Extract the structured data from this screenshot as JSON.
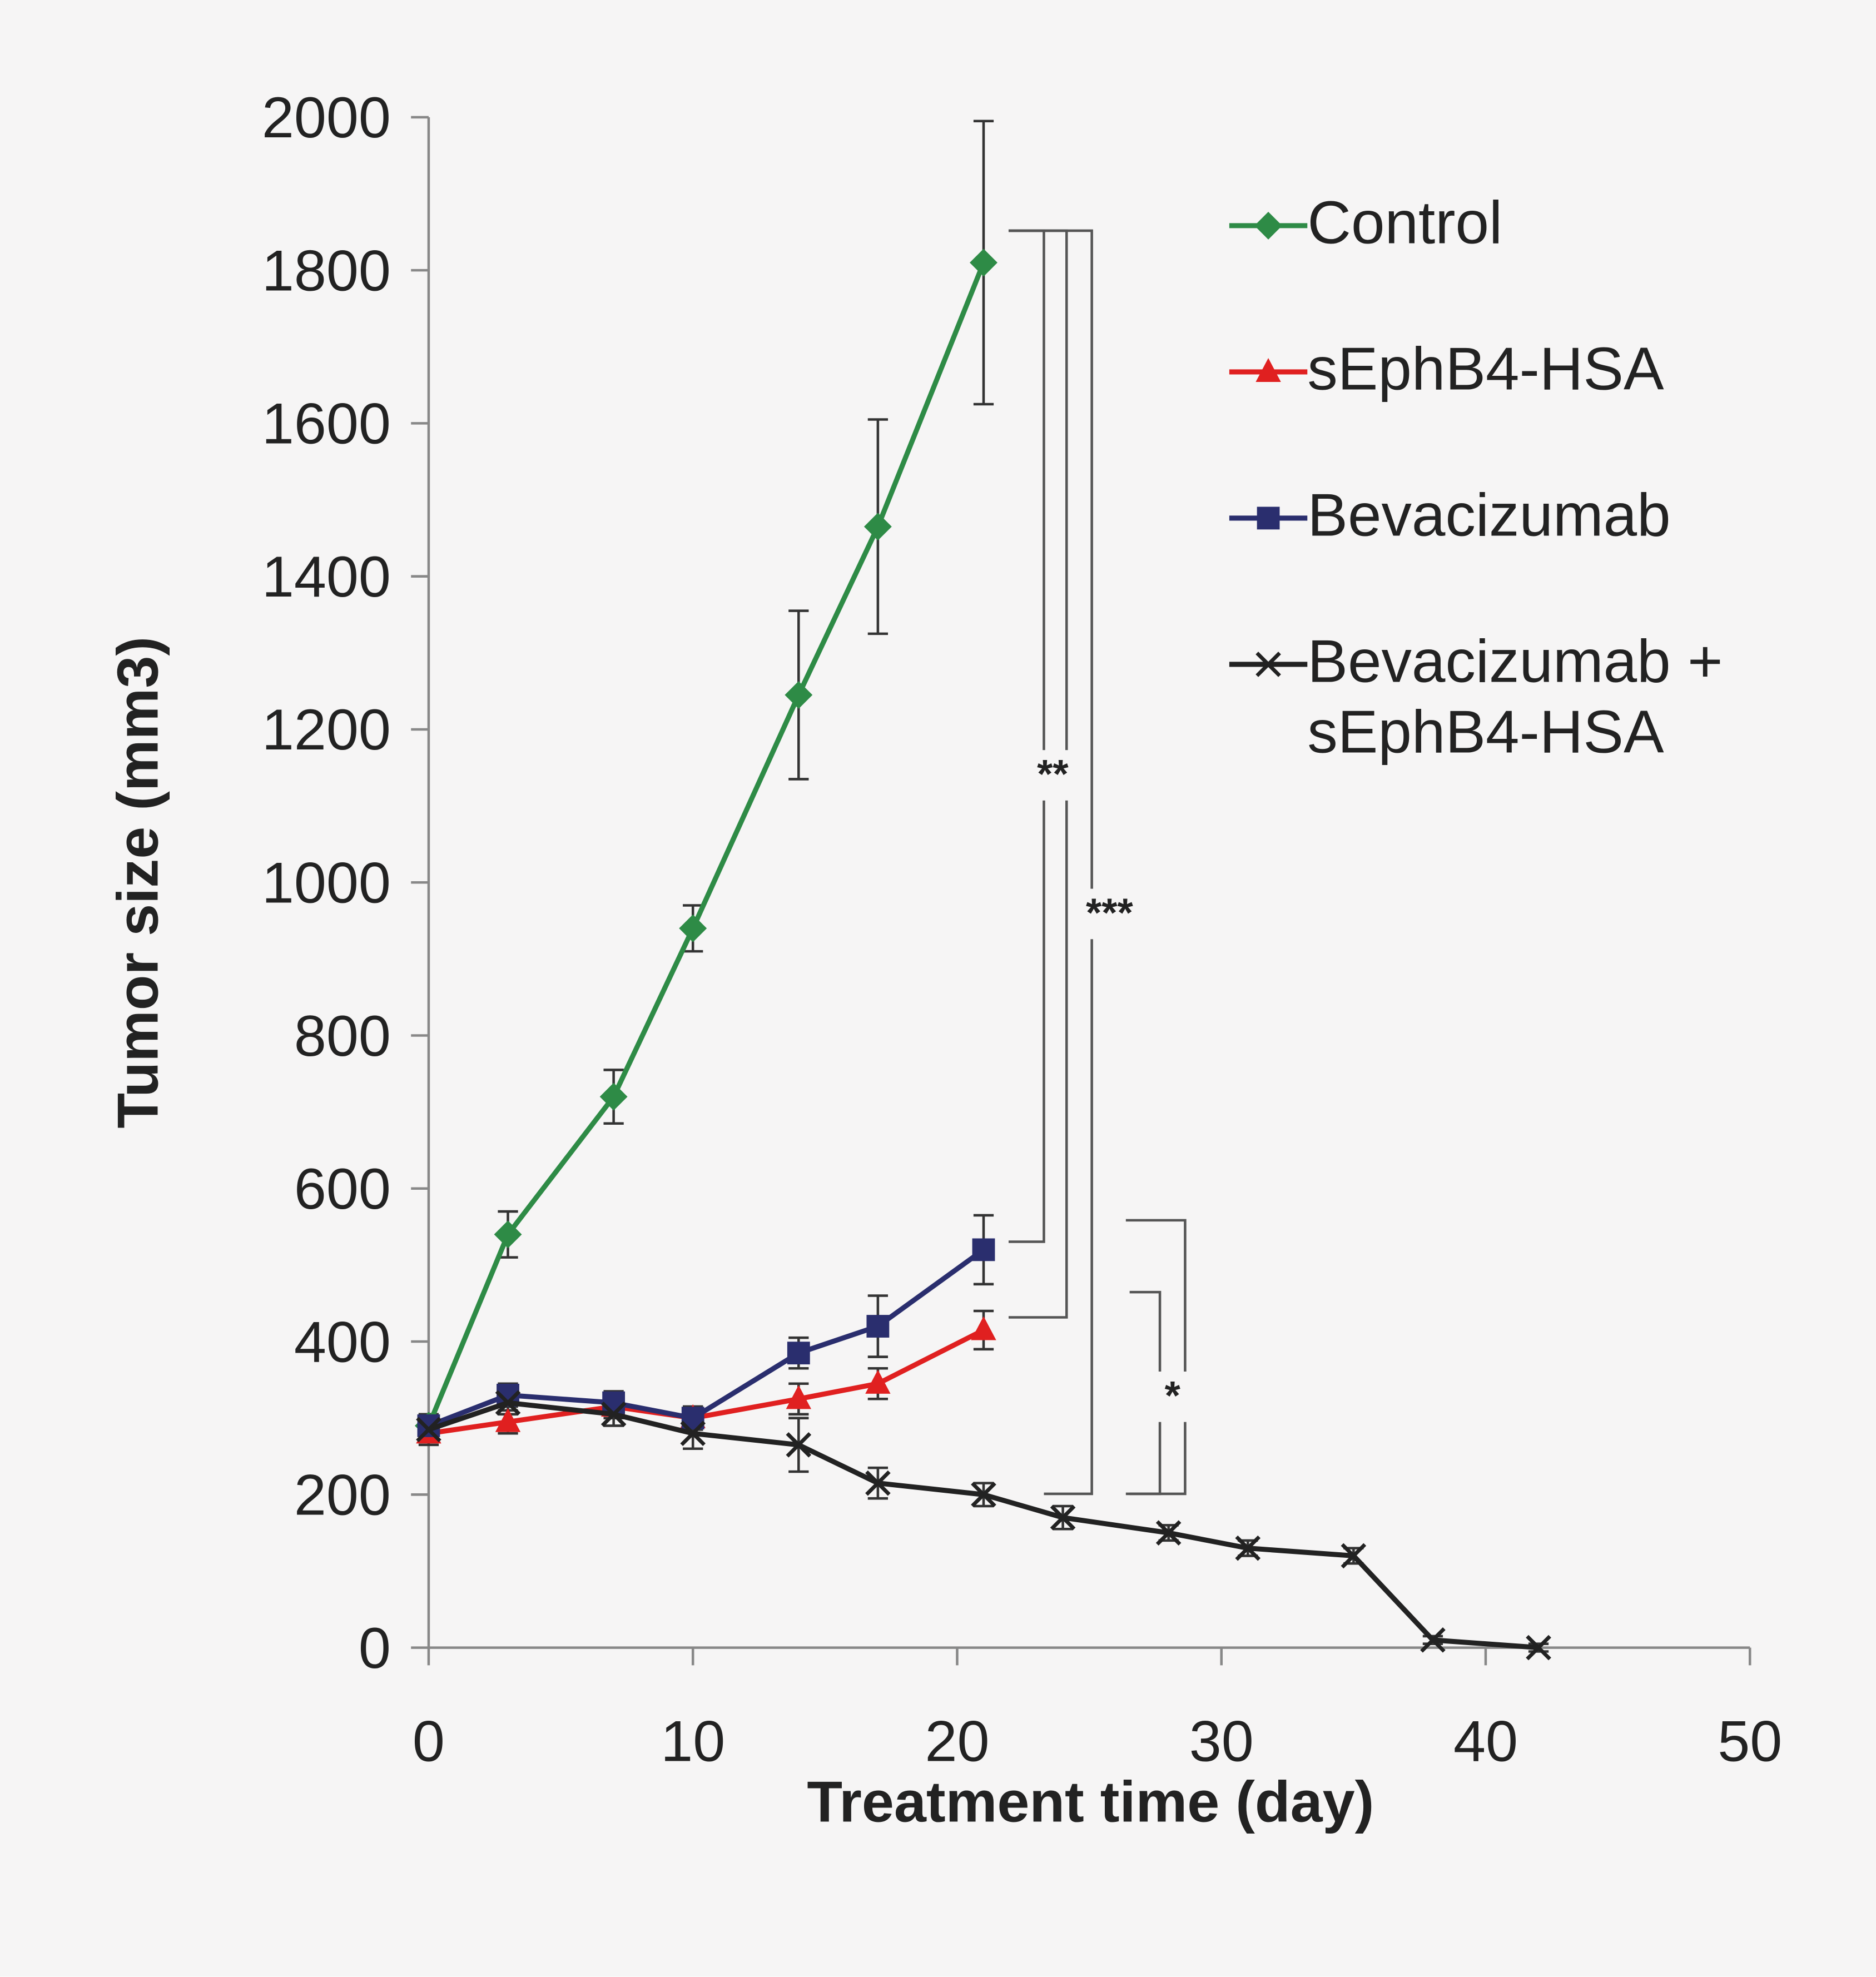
{
  "chart_data": {
    "type": "line",
    "x_label": "Treatment time (day)",
    "y_label": "Tumor size (mm3)",
    "xlim": [
      0,
      50
    ],
    "xticks": [
      0,
      10,
      20,
      30,
      40,
      50
    ],
    "ylim": [
      0,
      2000
    ],
    "yticks": [
      0,
      200,
      400,
      600,
      800,
      1000,
      1200,
      1400,
      1600,
      1800,
      2000
    ],
    "grid": false,
    "legend": "upper right",
    "series": [
      {
        "name": "Control",
        "color": "#2e8b46",
        "marker": "diamond",
        "x": [
          0,
          3,
          7,
          10,
          14,
          17,
          21
        ],
        "values": [
          290,
          540,
          720,
          940,
          1245,
          1465,
          1810
        ],
        "errors": [
          10,
          30,
          35,
          30,
          110,
          140,
          185
        ]
      },
      {
        "name": "sEphB4-HSA",
        "color": "#e02020",
        "marker": "triangle",
        "x": [
          0,
          3,
          7,
          10,
          14,
          17,
          21
        ],
        "values": [
          280,
          295,
          315,
          300,
          325,
          345,
          415
        ],
        "errors": [
          15,
          15,
          15,
          15,
          20,
          20,
          25
        ]
      },
      {
        "name": "Bevacizumab",
        "color": "#2a2e6e",
        "marker": "square",
        "x": [
          0,
          3,
          7,
          10,
          14,
          17,
          21
        ],
        "values": [
          290,
          330,
          320,
          300,
          385,
          420,
          520
        ],
        "errors": [
          15,
          15,
          15,
          15,
          20,
          40,
          45
        ]
      },
      {
        "name": "Bevacizumab + sEphB4-HSA",
        "color": "#222222",
        "marker": "x",
        "x": [
          0,
          3,
          7,
          10,
          14,
          17,
          21,
          24,
          28,
          31,
          35,
          38,
          42
        ],
        "values": [
          285,
          320,
          305,
          280,
          265,
          215,
          200,
          170,
          150,
          130,
          120,
          10,
          0
        ],
        "errors": [
          15,
          15,
          15,
          20,
          35,
          20,
          15,
          15,
          10,
          10,
          10,
          5,
          5
        ]
      }
    ],
    "annotations": [
      "**",
      "***",
      "*"
    ]
  }
}
